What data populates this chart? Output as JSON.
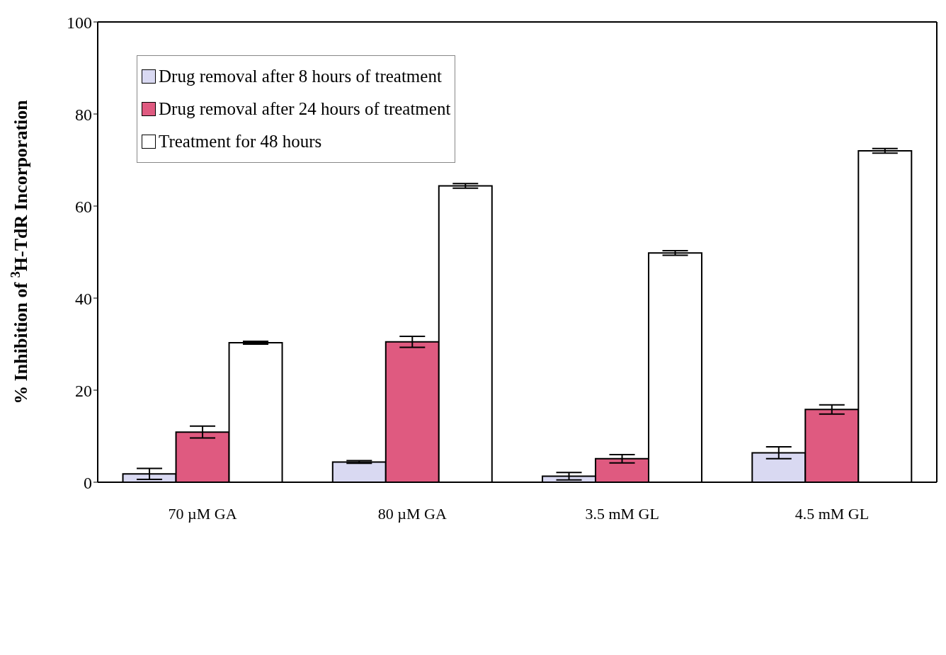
{
  "chart_data": {
    "type": "bar",
    "ylabel": "% Inhibition of $^{3}$H-TdR Incorporation",
    "categories": [
      "70 µM GA",
      "80 µM GA",
      "3.5 mM GL",
      "4.5 mM GL"
    ],
    "series": [
      {
        "name": "Drug removal after 8 hours of treatment",
        "color": "#d9d9f2",
        "values": [
          1.8,
          4.4,
          1.3,
          6.4
        ],
        "errors": [
          1.2,
          0.3,
          0.8,
          1.3
        ]
      },
      {
        "name": "Drug removal after 24 hours of treatment",
        "color": "#df5a80",
        "values": [
          10.9,
          30.5,
          5.1,
          15.8
        ],
        "errors": [
          1.3,
          1.2,
          0.9,
          1.0
        ]
      },
      {
        "name": "Treatment for 48 hours",
        "color": "#ffffff",
        "values": [
          30.3,
          64.4,
          49.8,
          72.0
        ],
        "errors": [
          0.3,
          0.5,
          0.5,
          0.5
        ]
      }
    ],
    "ylim": [
      0,
      100
    ],
    "yticks": [
      0,
      20,
      40,
      60,
      80,
      100
    ],
    "grid": false,
    "legend": "top left"
  }
}
